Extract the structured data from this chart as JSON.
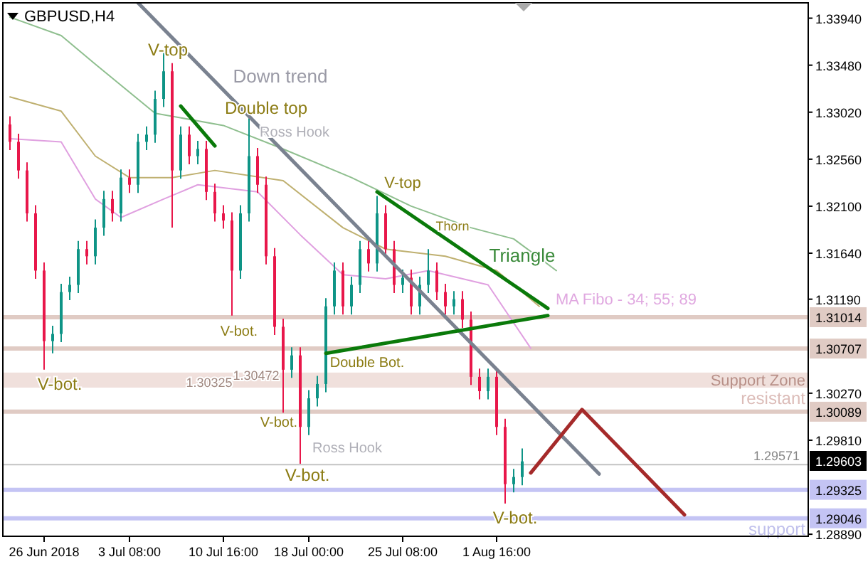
{
  "chart_data": {
    "type": "candlestick",
    "title": "GBPUSD,H4",
    "categories": [
      null,
      null,
      null,
      null,
      "26 Jun 2018",
      null,
      null,
      null,
      null,
      null,
      null,
      null,
      null,
      null,
      "3 Jul 08:00",
      null,
      null,
      null,
      null,
      null,
      null,
      null,
      null,
      null,
      null,
      "10 Jul 16:00",
      null,
      null,
      null,
      null,
      null,
      null,
      null,
      null,
      null,
      "18 Jul 00:00",
      null,
      null,
      null,
      null,
      null,
      null,
      null,
      null,
      null,
      null,
      "25 Jul 08:00",
      null,
      null,
      null,
      null,
      null,
      null,
      null,
      null,
      null,
      null,
      "1 Aug 16:00",
      null,
      null,
      null,
      null,
      null,
      null,
      null,
      null,
      null,
      null,
      null,
      null,
      null,
      null,
      null,
      null,
      null,
      null,
      null,
      null,
      null,
      null,
      null,
      null,
      null,
      null,
      null,
      null,
      null,
      null,
      null,
      null,
      null,
      null,
      null,
      null
    ],
    "ohlc": [
      [
        1.329,
        1.3298,
        1.3265,
        1.3273
      ],
      [
        1.3273,
        1.3281,
        1.3237,
        1.3245
      ],
      [
        1.3245,
        1.3253,
        1.3195,
        1.3203
      ],
      [
        1.3203,
        1.3211,
        1.3139,
        1.3147
      ],
      [
        1.3147,
        1.3155,
        1.305,
        1.3078
      ],
      [
        1.3078,
        1.3093,
        1.3066,
        1.3085
      ],
      [
        1.3085,
        1.3134,
        1.3077,
        1.3126
      ],
      [
        1.3126,
        1.3141,
        1.3118,
        1.3133
      ],
      [
        1.3133,
        1.3176,
        1.3125,
        1.3168
      ],
      [
        1.3168,
        1.3176,
        1.3153,
        1.3161
      ],
      [
        1.3161,
        1.3197,
        1.3153,
        1.3189
      ],
      [
        1.3189,
        1.3225,
        1.3181,
        1.3217
      ],
      [
        1.3217,
        1.3225,
        1.3195,
        1.3203
      ],
      [
        1.3203,
        1.3246,
        1.3195,
        1.3238
      ],
      [
        1.3238,
        1.3246,
        1.3223,
        1.3231
      ],
      [
        1.3231,
        1.3281,
        1.3223,
        1.3273
      ],
      [
        1.3273,
        1.3288,
        1.3265,
        1.328
      ],
      [
        1.328,
        1.3323,
        1.3272,
        1.3315
      ],
      [
        1.3315,
        1.3363,
        1.3307,
        1.3342
      ],
      [
        1.3342,
        1.335,
        1.3189,
        1.3245
      ],
      [
        1.3245,
        1.3288,
        1.3237,
        1.328
      ],
      [
        1.328,
        1.3288,
        1.3251,
        1.3259
      ],
      [
        1.3259,
        1.3274,
        1.3251,
        1.3266
      ],
      [
        1.3266,
        1.3274,
        1.3216,
        1.3224
      ],
      [
        1.3224,
        1.3232,
        1.3195,
        1.3203
      ],
      [
        1.3203,
        1.3211,
        1.3188,
        1.3196
      ],
      [
        1.3196,
        1.3204,
        1.3103,
        1.3147
      ],
      [
        1.3147,
        1.3211,
        1.3139,
        1.3203
      ],
      [
        1.3203,
        1.3296,
        1.3195,
        1.3259
      ],
      [
        1.3259,
        1.3267,
        1.3223,
        1.3231
      ],
      [
        1.3231,
        1.3239,
        1.3153,
        1.3161
      ],
      [
        1.3161,
        1.3169,
        1.3084,
        1.3092
      ],
      [
        1.3092,
        1.31,
        1.3008,
        1.305
      ],
      [
        1.305,
        1.3072,
        1.3042,
        1.3064
      ],
      [
        1.3064,
        1.3072,
        1.2958,
        1.2994
      ],
      [
        1.2994,
        1.303,
        1.2986,
        1.3022
      ],
      [
        1.3022,
        1.3044,
        1.3014,
        1.3036
      ],
      [
        1.3036,
        1.312,
        1.3028,
        1.3112
      ],
      [
        1.3112,
        1.3155,
        1.3104,
        1.3147
      ],
      [
        1.3147,
        1.3155,
        1.3104,
        1.3112
      ],
      [
        1.3112,
        1.3141,
        1.3104,
        1.3133
      ],
      [
        1.3133,
        1.3176,
        1.3125,
        1.3168
      ],
      [
        1.3168,
        1.3176,
        1.3146,
        1.3154
      ],
      [
        1.3154,
        1.322,
        1.3146,
        1.3203
      ],
      [
        1.3203,
        1.3211,
        1.316,
        1.3168
      ],
      [
        1.3168,
        1.3176,
        1.3125,
        1.3133
      ],
      [
        1.3133,
        1.3148,
        1.3125,
        1.314
      ],
      [
        1.314,
        1.3148,
        1.3104,
        1.3112
      ],
      [
        1.3112,
        1.3141,
        1.3104,
        1.3133
      ],
      [
        1.3133,
        1.3168,
        1.3125,
        1.3147
      ],
      [
        1.3147,
        1.3155,
        1.3118,
        1.3126
      ],
      [
        1.3126,
        1.3134,
        1.3104,
        1.3112
      ],
      [
        1.3112,
        1.3127,
        1.3104,
        1.3119
      ],
      [
        1.3119,
        1.3127,
        1.3091,
        1.3099
      ],
      [
        1.3099,
        1.3107,
        1.3035,
        1.3043
      ],
      [
        1.3043,
        1.3051,
        1.3021,
        1.3029
      ],
      [
        1.3029,
        1.3051,
        1.3021,
        1.3043
      ],
      [
        1.3043,
        1.3051,
        1.2986,
        1.2994
      ],
      [
        1.2994,
        1.3002,
        1.2919,
        1.2938
      ],
      [
        1.2938,
        1.2953,
        1.293,
        1.2945
      ],
      [
        1.2945,
        1.2973,
        1.2937,
        1.29603
      ],
      null,
      null,
      null,
      null,
      null,
      null,
      null,
      null,
      null,
      null,
      null,
      null,
      null,
      null,
      null,
      null,
      null,
      null,
      null,
      null,
      null,
      null,
      null,
      null,
      null,
      null,
      null,
      null,
      null,
      null,
      null,
      null,
      null
    ],
    "colors": [
      "#e8174a",
      "#e8174a",
      "#e8174a",
      "#e8174a",
      "#e8174a",
      "#0e9486",
      "#0e9486",
      "#0e9486",
      "#0e9486",
      "#e8174a",
      "#0e9486",
      "#0e9486",
      "#e8174a",
      "#0e9486",
      "#e8174a",
      "#0e9486",
      "#0e9486",
      "#0e9486",
      "#0e9486",
      "#e8174a",
      "#0e9486",
      "#e8174a",
      "#0e9486",
      "#e8174a",
      "#e8174a",
      "#e8174a",
      "#e8174a",
      "#0e9486",
      "#0e9486",
      "#e8174a",
      "#e8174a",
      "#e8174a",
      "#e8174a",
      "#0e9486",
      "#e8174a",
      "#0e9486",
      "#0e9486",
      "#0e9486",
      "#0e9486",
      "#e8174a",
      "#0e9486",
      "#0e9486",
      "#e8174a",
      "#0e9486",
      "#e8174a",
      "#e8174a",
      "#0e9486",
      "#e8174a",
      "#0e9486",
      "#0e9486",
      "#e8174a",
      "#e8174a",
      "#0e9486",
      "#e8174a",
      "#e8174a",
      "#e8174a",
      "#0e9486",
      "#e8174a",
      "#e8174a",
      "#0e9486",
      "#0e9486",
      null,
      null,
      null,
      null,
      null,
      null,
      null,
      null,
      null,
      null,
      null,
      null,
      null,
      null,
      null,
      null,
      null,
      null,
      null,
      null,
      null,
      null,
      null,
      null,
      null,
      null,
      null,
      null,
      null,
      null,
      null,
      null,
      null
    ],
    "series": [
      {
        "type": "line",
        "color": "#8fbf8f",
        "values": [
          1.3395,
          null,
          null,
          null,
          null,
          null,
          1.3377,
          null,
          null,
          null,
          1.3349,
          null,
          null,
          null,
          null,
          null,
          null,
          1.3301,
          null,
          null,
          null,
          null,
          null,
          null,
          null,
          1.3289,
          null,
          null,
          null,
          null,
          null,
          null,
          1.3266,
          null,
          null,
          null,
          null,
          null,
          null,
          null,
          1.3238,
          null,
          null,
          null,
          null,
          null,
          null,
          1.321,
          null,
          null,
          null,
          null,
          null,
          null,
          1.3189,
          null,
          null,
          null,
          null,
          1.3178,
          null,
          null,
          null,
          null,
          1.3147,
          null,
          null,
          null,
          null,
          null,
          null,
          null,
          null,
          null,
          null,
          null,
          null,
          null,
          null,
          null,
          null,
          null,
          null,
          null,
          null,
          null,
          null,
          null,
          null,
          null,
          null,
          null,
          null,
          null
        ]
      },
      {
        "type": "line",
        "color": "#bfb070",
        "values": [
          1.3317,
          null,
          null,
          null,
          null,
          null,
          1.3303,
          null,
          null,
          null,
          1.3259,
          null,
          null,
          null,
          1.3238,
          null,
          null,
          null,
          null,
          1.3238,
          null,
          null,
          null,
          null,
          1.3245,
          null,
          null,
          null,
          null,
          null,
          null,
          null,
          1.3235,
          null,
          null,
          null,
          null,
          null,
          null,
          1.3189,
          null,
          null,
          null,
          null,
          1.3168,
          null,
          null,
          null,
          null,
          null,
          null,
          1.3161,
          null,
          null,
          null,
          null,
          null,
          1.3147,
          null,
          null,
          null,
          null,
          1.3112,
          null,
          null,
          null,
          null,
          null,
          null,
          null,
          null,
          null,
          null,
          null,
          null,
          null,
          null,
          null,
          null,
          null,
          null,
          null,
          null,
          null,
          null,
          null,
          null,
          null,
          null,
          null,
          null,
          null,
          null,
          null
        ]
      },
      {
        "type": "line",
        "color": "#e0a0e0",
        "values": [
          1.3276,
          null,
          null,
          null,
          null,
          null,
          1.3273,
          null,
          null,
          null,
          1.3217,
          null,
          null,
          1.3199,
          null,
          null,
          null,
          null,
          1.3217,
          null,
          null,
          null,
          1.3231,
          null,
          null,
          null,
          null,
          null,
          null,
          1.3224,
          null,
          null,
          null,
          null,
          1.3182,
          null,
          null,
          null,
          null,
          1.3143,
          null,
          null,
          null,
          null,
          1.3139,
          null,
          null,
          null,
          null,
          1.3147,
          null,
          null,
          null,
          null,
          null,
          null,
          1.3133,
          null,
          null,
          null,
          null,
          1.3071,
          null,
          null,
          null,
          null,
          null,
          null,
          null,
          null,
          null,
          null,
          null,
          null,
          null,
          null,
          null,
          null,
          null,
          null,
          null,
          null,
          null,
          null,
          null,
          null,
          null,
          null,
          null,
          null,
          null,
          null,
          null,
          null
        ]
      },
      {
        "type": "line",
        "color": "#7a8290",
        "values": [
          null,
          null,
          null,
          null,
          null,
          null,
          null,
          null,
          null,
          null,
          null,
          null,
          null,
          null,
          null,
          1.3409,
          null,
          null,
          null,
          null,
          null,
          null,
          null,
          null,
          null,
          null,
          null,
          null,
          null,
          null,
          null,
          null,
          null,
          null,
          null,
          null,
          null,
          null,
          null,
          null,
          null,
          null,
          null,
          null,
          null,
          null,
          null,
          null,
          null,
          null,
          null,
          null,
          null,
          null,
          null,
          null,
          null,
          null,
          null,
          null,
          null,
          null,
          null,
          null,
          null,
          null,
          null,
          null,
          null,
          1.2948,
          null,
          null,
          null,
          null,
          null,
          null,
          null,
          null,
          null,
          null,
          null,
          null,
          null,
          null,
          null,
          null,
          null,
          null,
          null,
          null,
          null,
          null,
          null,
          null
        ]
      },
      {
        "type": "line",
        "color": "#0a7a0a",
        "values": [
          null,
          null,
          null,
          null,
          null,
          null,
          null,
          null,
          null,
          null,
          null,
          null,
          null,
          null,
          null,
          null,
          null,
          null,
          null,
          null,
          1.3308,
          null,
          null,
          null,
          1.3269,
          null,
          null,
          null,
          null,
          null,
          null,
          null,
          null,
          null,
          null,
          null,
          null,
          null,
          null,
          null,
          null,
          null,
          null,
          null,
          null,
          null,
          null,
          null,
          null,
          null,
          null,
          null,
          null,
          null,
          null,
          null,
          null,
          null,
          null,
          null,
          null,
          null,
          null,
          null,
          null,
          null,
          null,
          null,
          null,
          null,
          null,
          null,
          null,
          null,
          null,
          null,
          null,
          null,
          null,
          null,
          null,
          null,
          null,
          null,
          null,
          null,
          null,
          null,
          null,
          null,
          null,
          null,
          null,
          null
        ]
      },
      {
        "type": "line",
        "color": "#0a7a0a",
        "values": [
          null,
          null,
          null,
          null,
          null,
          null,
          null,
          null,
          null,
          null,
          null,
          null,
          null,
          null,
          null,
          null,
          null,
          null,
          null,
          null,
          null,
          null,
          null,
          null,
          null,
          null,
          null,
          null,
          null,
          null,
          null,
          null,
          null,
          null,
          null,
          null,
          null,
          null,
          null,
          null,
          null,
          null,
          null,
          1.3224,
          null,
          null,
          null,
          null,
          null,
          null,
          null,
          null,
          null,
          null,
          null,
          null,
          null,
          null,
          null,
          null,
          null,
          null,
          null,
          1.311,
          null,
          null,
          null,
          null,
          null,
          null,
          null,
          null,
          null,
          null,
          null,
          null,
          null,
          null,
          null,
          null,
          null,
          null,
          null,
          null,
          null,
          null,
          null,
          null,
          null,
          null,
          null,
          null,
          null,
          null
        ]
      },
      {
        "type": "line",
        "color": "#0a7a0a",
        "values": [
          null,
          null,
          null,
          null,
          null,
          null,
          null,
          null,
          null,
          null,
          null,
          null,
          null,
          null,
          null,
          null,
          null,
          null,
          null,
          null,
          null,
          null,
          null,
          null,
          null,
          null,
          null,
          null,
          null,
          null,
          null,
          null,
          null,
          null,
          null,
          null,
          null,
          1.3066,
          null,
          null,
          null,
          null,
          null,
          null,
          null,
          null,
          null,
          null,
          null,
          null,
          null,
          null,
          null,
          null,
          null,
          null,
          null,
          null,
          null,
          null,
          null,
          null,
          null,
          1.3103,
          null,
          null,
          null,
          null,
          null,
          null,
          null,
          null,
          null,
          null,
          null,
          null,
          null,
          null,
          null,
          null,
          null,
          null,
          null,
          null,
          null,
          null,
          null,
          null,
          null,
          null,
          null,
          null,
          null,
          null
        ]
      },
      {
        "type": "line",
        "color": "#a52a2a",
        "values": [
          null,
          null,
          null,
          null,
          null,
          null,
          null,
          null,
          null,
          null,
          null,
          null,
          null,
          null,
          null,
          null,
          null,
          null,
          null,
          null,
          null,
          null,
          null,
          null,
          null,
          null,
          null,
          null,
          null,
          null,
          null,
          null,
          null,
          null,
          null,
          null,
          null,
          null,
          null,
          null,
          null,
          null,
          null,
          null,
          null,
          null,
          null,
          null,
          null,
          null,
          null,
          null,
          null,
          null,
          null,
          null,
          null,
          null,
          null,
          null,
          null,
          1.2949,
          null,
          null,
          null,
          null,
          null,
          1.3011,
          null,
          null,
          null,
          null,
          null,
          null,
          null,
          null,
          null,
          null,
          null,
          1.2908,
          null,
          null,
          null,
          null,
          null,
          null,
          null,
          null,
          null,
          null,
          null,
          null,
          null,
          null
        ]
      }
    ],
    "ylim": [
      1.2887,
      1.3409
    ],
    "yticks": [
      {
        "value": 1.3394,
        "label": "1.33940"
      },
      {
        "value": 1.3348,
        "label": "1.33480"
      },
      {
        "value": 1.3302,
        "label": "1.33020"
      },
      {
        "value": 1.3256,
        "label": "1.32560"
      },
      {
        "value": 1.321,
        "label": "1.32100"
      },
      {
        "value": 1.3164,
        "label": "1.31640"
      },
      {
        "value": 1.3119,
        "label": "1.31190"
      },
      {
        "value": 1.3027,
        "label": "1.30270"
      },
      {
        "value": 1.2981,
        "label": "1.29810"
      },
      {
        "value": 1.2889,
        "label": "1.28890"
      }
    ],
    "ref_lines": [
      {
        "axis": "y",
        "value": 1.31014,
        "label": "1.31014",
        "color": "#e0cbc4"
      },
      {
        "axis": "y",
        "value": 1.30707,
        "label": "1.30707",
        "color": "#e0cbc4"
      },
      {
        "axis": "y",
        "value": 1.30089,
        "label": "1.30089",
        "color": "#e0cbc4"
      },
      {
        "axis": "y",
        "value": 1.29571,
        "label": "1.29571",
        "color": "#c4c4c4"
      },
      {
        "axis": "y",
        "value": 1.29325,
        "label": "1.29325",
        "color": "#c4c4f4"
      },
      {
        "axis": "y",
        "value": 1.29046,
        "label": "1.29046",
        "color": "#c4c4f4"
      }
    ],
    "bands": [
      {
        "axis": "y",
        "from": 1.30325,
        "to": 1.30472,
        "label": "Support Zone",
        "color": "#f0e0dc"
      }
    ],
    "annotations": [
      "1.29603",
      "V-top",
      "Down trend",
      "Double top",
      "Ross Hook",
      "V-top",
      "Thorn",
      "Triangle",
      "MA Fibo - 34; 55; 89",
      "V-bot.",
      "V-bot.",
      "Double Bot.",
      "V-bot.",
      "Ross Hook",
      "V-bot.",
      "V-bot.",
      "1.30325",
      "1.30472",
      "resistant",
      "support"
    ]
  }
}
